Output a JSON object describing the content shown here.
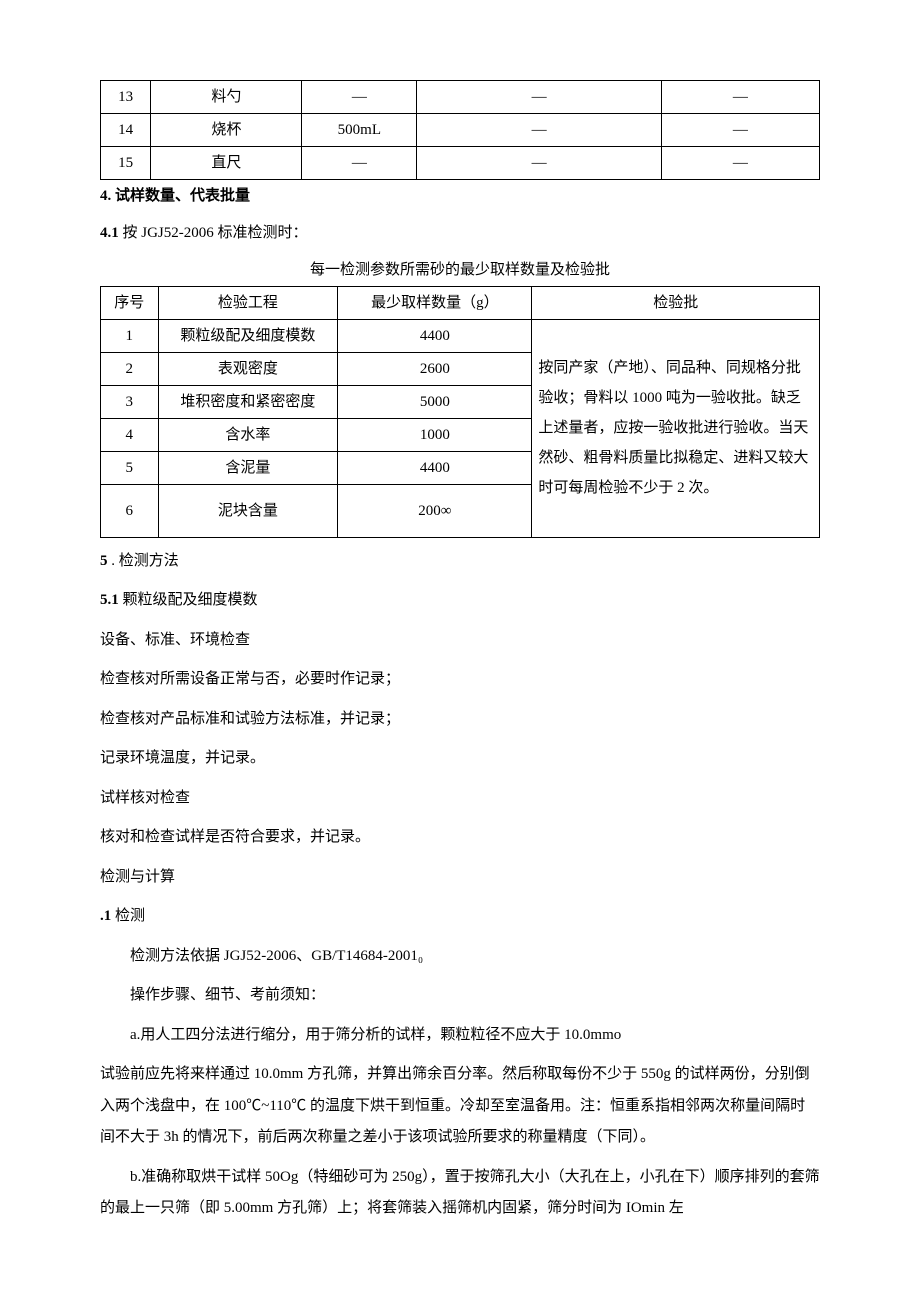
{
  "table1": {
    "rows": [
      {
        "no": "13",
        "name": "料勺",
        "spec": "—",
        "col4": "—",
        "col5": "—"
      },
      {
        "no": "14",
        "name": "烧杯",
        "spec": "500mL",
        "col4": "—",
        "col5": "—"
      },
      {
        "no": "15",
        "name": "直尺",
        "spec": "—",
        "col4": "—",
        "col5": "—"
      }
    ]
  },
  "section4": {
    "heading_num": "4.",
    "heading_text": " 试样数量、代表批量",
    "sub_num": "4.1",
    "sub_text": " 按 JGJ52-2006 标准检测时：",
    "caption": "每一检测参数所需砂的最少取样数量及检验批"
  },
  "table2": {
    "headers": {
      "no": "序号",
      "item": "检验工程",
      "qty": "最少取样数量（g）",
      "batch": "检验批"
    },
    "rows": [
      {
        "no": "1",
        "item": "颗粒级配及细度模数",
        "qty": "4400"
      },
      {
        "no": "2",
        "item": "表观密度",
        "qty": "2600"
      },
      {
        "no": "3",
        "item": "堆积密度和紧密密度",
        "qty": "5000"
      },
      {
        "no": "4",
        "item": "含水率",
        "qty": "1000"
      },
      {
        "no": "5",
        "item": "含泥量",
        "qty": "4400"
      },
      {
        "no": "6",
        "item": "泥块含量",
        "qty": "200∞"
      }
    ],
    "batch_text": "按同产家（产地）、同品种、同规格分批验收；骨料以 1000 吨为一验收批。缺乏上述量者，应按一验收批进行验收。当天然砂、粗骨料质量比拟稳定、进料又较大时可每周检验不少于 2 次。"
  },
  "section5": {
    "heading_num": "5",
    "heading_text": "   . 检测方法",
    "sub_num": "5.1",
    "sub_text": "   颗粒级配及细度模数",
    "p1": "设备、标准、环境检查",
    "p2": "检查核对所需设备正常与否，必要时作记录；",
    "p3": "检查核对产品标准和试验方法标准，并记录；",
    "p4": "记录环境温度，并记录。",
    "p5": "试样核对检查",
    "p6": "核对和检查试样是否符合要求，并记录。",
    "p7": "检测与计算",
    "p8_num": ".1",
    "p8_text": " 检测",
    "p9": "检测方法依据 JGJ52-2006、GB/T14684-2001₀",
    "p10": "操作步骤、细节、考前须知：",
    "p11": "a.用人工四分法进行缩分，用于筛分析的试样，颗粒粒径不应大于 10.0mmo",
    "p12": "试验前应先将来样通过 10.0mm 方孔筛，并算出筛余百分率。然后称取每份不少于 550g 的试样两份，分别倒入两个浅盘中，在 100℃~110℃ 的温度下烘干到恒重。冷却至室温备用。注：恒重系指相邻两次称量间隔时间不大于 3h 的情况下，前后两次称量之差小于该项试验所要求的称量精度（下同）。",
    "p13": "b.准确称取烘干试样 50Og（特细砂可为 250g），置于按筛孔大小（大孔在上，小孔在下）顺序排列的套筛的最上一只筛（即 5.00mm 方孔筛）上；将套筛装入摇筛机内固紧，筛分时间为 IOmin 左"
  }
}
